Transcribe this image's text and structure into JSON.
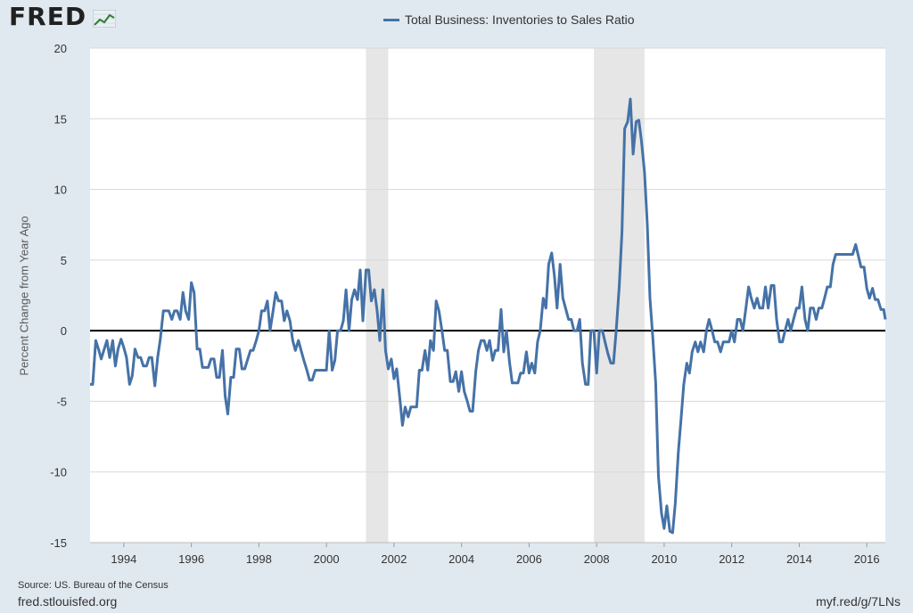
{
  "brand": {
    "name": "FRED",
    "icon": "fred-chart-logo-icon"
  },
  "chart_data": {
    "type": "line",
    "title": "",
    "xlabel": "",
    "ylabel": "Percent Change from Year Ago",
    "ylim": [
      -15,
      20
    ],
    "xlim": [
      1993.0,
      2016.55
    ],
    "yticks": [
      20,
      15,
      10,
      5,
      0,
      -5,
      -10,
      -15
    ],
    "ytick_labels": [
      "20",
      "15",
      "10",
      "5",
      "0",
      "-5",
      "-10",
      "-15"
    ],
    "xticks": [
      1994,
      1996,
      1998,
      2000,
      2002,
      2004,
      2006,
      2008,
      2010,
      2012,
      2014,
      2016
    ],
    "xtick_labels": [
      "1994",
      "1996",
      "1998",
      "2000",
      "2002",
      "2004",
      "2006",
      "2008",
      "2010",
      "2012",
      "2014",
      "2016"
    ],
    "grid": true,
    "legend_position": "top-center",
    "zero_line": true,
    "recessions": [
      [
        2001.17,
        2001.83
      ],
      [
        2007.92,
        2009.42
      ]
    ],
    "series": [
      {
        "name": "Total Business: Inventories to Sales Ratio",
        "color": "#4572a7",
        "points": [
          [
            1993.0,
            -3.8
          ],
          [
            1993.08,
            -3.8
          ],
          [
            1993.17,
            -0.7
          ],
          [
            1993.25,
            -1.3
          ],
          [
            1993.33,
            -2.0
          ],
          [
            1993.42,
            -1.3
          ],
          [
            1993.5,
            -0.7
          ],
          [
            1993.58,
            -1.9
          ],
          [
            1993.67,
            -0.7
          ],
          [
            1993.75,
            -2.5
          ],
          [
            1993.83,
            -1.3
          ],
          [
            1993.92,
            -0.6
          ],
          [
            1994.0,
            -1.2
          ],
          [
            1994.08,
            -1.9
          ],
          [
            1994.17,
            -3.8
          ],
          [
            1994.25,
            -3.2
          ],
          [
            1994.33,
            -1.3
          ],
          [
            1994.42,
            -1.9
          ],
          [
            1994.5,
            -1.9
          ],
          [
            1994.58,
            -2.5
          ],
          [
            1994.67,
            -2.5
          ],
          [
            1994.75,
            -1.9
          ],
          [
            1994.83,
            -1.9
          ],
          [
            1994.92,
            -3.9
          ],
          [
            1995.0,
            -1.9
          ],
          [
            1995.08,
            -0.6
          ],
          [
            1995.17,
            1.4
          ],
          [
            1995.25,
            1.4
          ],
          [
            1995.33,
            1.4
          ],
          [
            1995.42,
            0.8
          ],
          [
            1995.5,
            1.4
          ],
          [
            1995.58,
            1.4
          ],
          [
            1995.67,
            0.8
          ],
          [
            1995.75,
            2.7
          ],
          [
            1995.83,
            1.4
          ],
          [
            1995.92,
            0.8
          ],
          [
            1996.0,
            3.4
          ],
          [
            1996.08,
            2.7
          ],
          [
            1996.17,
            -1.3
          ],
          [
            1996.25,
            -1.3
          ],
          [
            1996.33,
            -2.6
          ],
          [
            1996.42,
            -2.6
          ],
          [
            1996.5,
            -2.6
          ],
          [
            1996.58,
            -2.0
          ],
          [
            1996.67,
            -2.0
          ],
          [
            1996.75,
            -3.3
          ],
          [
            1996.83,
            -3.3
          ],
          [
            1996.92,
            -1.4
          ],
          [
            1997.0,
            -4.6
          ],
          [
            1997.08,
            -5.9
          ],
          [
            1997.17,
            -3.3
          ],
          [
            1997.25,
            -3.3
          ],
          [
            1997.33,
            -1.3
          ],
          [
            1997.42,
            -1.3
          ],
          [
            1997.5,
            -2.7
          ],
          [
            1997.58,
            -2.7
          ],
          [
            1997.67,
            -2.0
          ],
          [
            1997.75,
            -1.4
          ],
          [
            1997.83,
            -1.4
          ],
          [
            1997.92,
            -0.7
          ],
          [
            1998.0,
            0.0
          ],
          [
            1998.08,
            1.4
          ],
          [
            1998.17,
            1.4
          ],
          [
            1998.25,
            2.1
          ],
          [
            1998.33,
            0.0
          ],
          [
            1998.42,
            1.4
          ],
          [
            1998.5,
            2.7
          ],
          [
            1998.58,
            2.1
          ],
          [
            1998.67,
            2.1
          ],
          [
            1998.75,
            0.7
          ],
          [
            1998.83,
            1.4
          ],
          [
            1998.92,
            0.7
          ],
          [
            1999.0,
            -0.7
          ],
          [
            1999.08,
            -1.4
          ],
          [
            1999.17,
            -0.7
          ],
          [
            1999.25,
            -1.4
          ],
          [
            1999.33,
            -2.1
          ],
          [
            1999.42,
            -2.8
          ],
          [
            1999.5,
            -3.5
          ],
          [
            1999.58,
            -3.5
          ],
          [
            1999.67,
            -2.8
          ],
          [
            1999.75,
            -2.8
          ],
          [
            1999.83,
            -2.8
          ],
          [
            1999.92,
            -2.8
          ],
          [
            2000.0,
            -2.8
          ],
          [
            2000.08,
            0.0
          ],
          [
            2000.17,
            -2.8
          ],
          [
            2000.25,
            -2.1
          ],
          [
            2000.33,
            0.0
          ],
          [
            2000.42,
            0.0
          ],
          [
            2000.5,
            0.7
          ],
          [
            2000.58,
            2.9
          ],
          [
            2000.67,
            0.0
          ],
          [
            2000.75,
            2.2
          ],
          [
            2000.83,
            2.9
          ],
          [
            2000.92,
            2.2
          ],
          [
            2001.0,
            4.3
          ],
          [
            2001.08,
            0.7
          ],
          [
            2001.17,
            4.3
          ],
          [
            2001.25,
            4.3
          ],
          [
            2001.33,
            2.1
          ],
          [
            2001.42,
            2.9
          ],
          [
            2001.5,
            1.4
          ],
          [
            2001.58,
            -0.7
          ],
          [
            2001.67,
            2.9
          ],
          [
            2001.75,
            -1.4
          ],
          [
            2001.83,
            -2.7
          ],
          [
            2001.92,
            -2.0
          ],
          [
            2002.0,
            -3.4
          ],
          [
            2002.08,
            -2.7
          ],
          [
            2002.17,
            -4.7
          ],
          [
            2002.25,
            -6.7
          ],
          [
            2002.33,
            -5.4
          ],
          [
            2002.42,
            -6.1
          ],
          [
            2002.5,
            -5.4
          ],
          [
            2002.58,
            -5.4
          ],
          [
            2002.67,
            -5.4
          ],
          [
            2002.75,
            -2.8
          ],
          [
            2002.83,
            -2.8
          ],
          [
            2002.92,
            -1.4
          ],
          [
            2003.0,
            -2.8
          ],
          [
            2003.08,
            -0.7
          ],
          [
            2003.17,
            -1.4
          ],
          [
            2003.25,
            2.1
          ],
          [
            2003.33,
            1.4
          ],
          [
            2003.42,
            0.0
          ],
          [
            2003.5,
            -1.4
          ],
          [
            2003.58,
            -1.4
          ],
          [
            2003.67,
            -3.6
          ],
          [
            2003.75,
            -3.6
          ],
          [
            2003.83,
            -2.9
          ],
          [
            2003.92,
            -4.3
          ],
          [
            2004.0,
            -2.9
          ],
          [
            2004.08,
            -4.3
          ],
          [
            2004.17,
            -5.0
          ],
          [
            2004.25,
            -5.7
          ],
          [
            2004.33,
            -5.7
          ],
          [
            2004.42,
            -2.9
          ],
          [
            2004.5,
            -1.4
          ],
          [
            2004.58,
            -0.7
          ],
          [
            2004.67,
            -0.7
          ],
          [
            2004.75,
            -1.4
          ],
          [
            2004.83,
            -0.7
          ],
          [
            2004.92,
            -2.1
          ],
          [
            2005.0,
            -1.4
          ],
          [
            2005.08,
            -1.4
          ],
          [
            2005.17,
            1.5
          ],
          [
            2005.25,
            -1.5
          ],
          [
            2005.33,
            0.0
          ],
          [
            2005.42,
            -2.2
          ],
          [
            2005.5,
            -3.7
          ],
          [
            2005.58,
            -3.7
          ],
          [
            2005.67,
            -3.7
          ],
          [
            2005.75,
            -3.0
          ],
          [
            2005.83,
            -3.0
          ],
          [
            2005.92,
            -1.5
          ],
          [
            2006.0,
            -3.0
          ],
          [
            2006.08,
            -2.3
          ],
          [
            2006.17,
            -3.0
          ],
          [
            2006.25,
            -0.8
          ],
          [
            2006.33,
            0.0
          ],
          [
            2006.42,
            2.3
          ],
          [
            2006.5,
            1.6
          ],
          [
            2006.58,
            4.7
          ],
          [
            2006.67,
            5.5
          ],
          [
            2006.75,
            3.9
          ],
          [
            2006.83,
            1.6
          ],
          [
            2006.92,
            4.7
          ],
          [
            2007.0,
            2.3
          ],
          [
            2007.08,
            1.6
          ],
          [
            2007.17,
            0.8
          ],
          [
            2007.25,
            0.8
          ],
          [
            2007.33,
            0.0
          ],
          [
            2007.42,
            0.0
          ],
          [
            2007.5,
            0.8
          ],
          [
            2007.58,
            -2.3
          ],
          [
            2007.67,
            -3.8
          ],
          [
            2007.75,
            -3.8
          ],
          [
            2007.83,
            0.0
          ],
          [
            2007.92,
            0.0
          ],
          [
            2008.0,
            -3.0
          ],
          [
            2008.08,
            0.0
          ],
          [
            2008.17,
            0.0
          ],
          [
            2008.25,
            -0.8
          ],
          [
            2008.33,
            -1.6
          ],
          [
            2008.42,
            -2.3
          ],
          [
            2008.5,
            -2.3
          ],
          [
            2008.58,
            0.0
          ],
          [
            2008.67,
            3.1
          ],
          [
            2008.75,
            7.0
          ],
          [
            2008.83,
            14.3
          ],
          [
            2008.92,
            14.8
          ],
          [
            2009.0,
            16.4
          ],
          [
            2009.08,
            12.5
          ],
          [
            2009.17,
            14.8
          ],
          [
            2009.25,
            14.9
          ],
          [
            2009.33,
            13.4
          ],
          [
            2009.42,
            11.2
          ],
          [
            2009.5,
            7.5
          ],
          [
            2009.58,
            2.3
          ],
          [
            2009.67,
            -0.7
          ],
          [
            2009.75,
            -3.7
          ],
          [
            2009.83,
            -10.3
          ],
          [
            2009.92,
            -12.9
          ],
          [
            2010.0,
            -14.0
          ],
          [
            2010.08,
            -12.4
          ],
          [
            2010.17,
            -14.2
          ],
          [
            2010.25,
            -14.3
          ],
          [
            2010.33,
            -12.2
          ],
          [
            2010.42,
            -8.6
          ],
          [
            2010.5,
            -6.3
          ],
          [
            2010.58,
            -3.8
          ],
          [
            2010.67,
            -2.3
          ],
          [
            2010.75,
            -3.0
          ],
          [
            2010.83,
            -1.5
          ],
          [
            2010.92,
            -0.8
          ],
          [
            2011.0,
            -1.5
          ],
          [
            2011.08,
            -0.8
          ],
          [
            2011.17,
            -1.5
          ],
          [
            2011.25,
            0.0
          ],
          [
            2011.33,
            0.8
          ],
          [
            2011.42,
            0.0
          ],
          [
            2011.5,
            -0.8
          ],
          [
            2011.58,
            -0.8
          ],
          [
            2011.67,
            -1.5
          ],
          [
            2011.75,
            -0.8
          ],
          [
            2011.83,
            -0.8
          ],
          [
            2011.92,
            -0.8
          ],
          [
            2012.0,
            0.0
          ],
          [
            2012.08,
            -0.8
          ],
          [
            2012.17,
            0.8
          ],
          [
            2012.25,
            0.8
          ],
          [
            2012.33,
            0.0
          ],
          [
            2012.42,
            1.6
          ],
          [
            2012.5,
            3.1
          ],
          [
            2012.58,
            2.3
          ],
          [
            2012.67,
            1.6
          ],
          [
            2012.75,
            2.3
          ],
          [
            2012.83,
            1.6
          ],
          [
            2012.92,
            1.6
          ],
          [
            2013.0,
            3.1
          ],
          [
            2013.08,
            1.6
          ],
          [
            2013.17,
            3.2
          ],
          [
            2013.25,
            3.2
          ],
          [
            2013.33,
            0.8
          ],
          [
            2013.42,
            -0.8
          ],
          [
            2013.5,
            -0.8
          ],
          [
            2013.58,
            0.0
          ],
          [
            2013.67,
            0.8
          ],
          [
            2013.75,
            0.0
          ],
          [
            2013.83,
            0.8
          ],
          [
            2013.92,
            1.6
          ],
          [
            2014.0,
            1.6
          ],
          [
            2014.08,
            3.1
          ],
          [
            2014.17,
            0.8
          ],
          [
            2014.25,
            0.0
          ],
          [
            2014.33,
            1.6
          ],
          [
            2014.42,
            1.6
          ],
          [
            2014.5,
            0.8
          ],
          [
            2014.58,
            1.6
          ],
          [
            2014.67,
            1.6
          ],
          [
            2014.75,
            2.3
          ],
          [
            2014.83,
            3.1
          ],
          [
            2014.92,
            3.1
          ],
          [
            2015.0,
            4.7
          ],
          [
            2015.08,
            5.4
          ],
          [
            2015.17,
            5.4
          ],
          [
            2015.25,
            5.4
          ],
          [
            2015.33,
            5.4
          ],
          [
            2015.42,
            5.4
          ],
          [
            2015.5,
            5.4
          ],
          [
            2015.58,
            5.4
          ],
          [
            2015.67,
            6.1
          ],
          [
            2015.75,
            5.3
          ],
          [
            2015.83,
            4.5
          ],
          [
            2015.92,
            4.5
          ],
          [
            2016.0,
            3.0
          ],
          [
            2016.08,
            2.3
          ],
          [
            2016.17,
            3.0
          ],
          [
            2016.25,
            2.2
          ],
          [
            2016.33,
            2.2
          ],
          [
            2016.42,
            1.5
          ],
          [
            2016.5,
            1.5
          ],
          [
            2016.55,
            0.8
          ]
        ]
      }
    ]
  },
  "footer": {
    "source": "Source: US. Bureau of the Census",
    "site": "fred.stlouisfed.org",
    "shortlink": "myf.red/g/7LNs"
  }
}
